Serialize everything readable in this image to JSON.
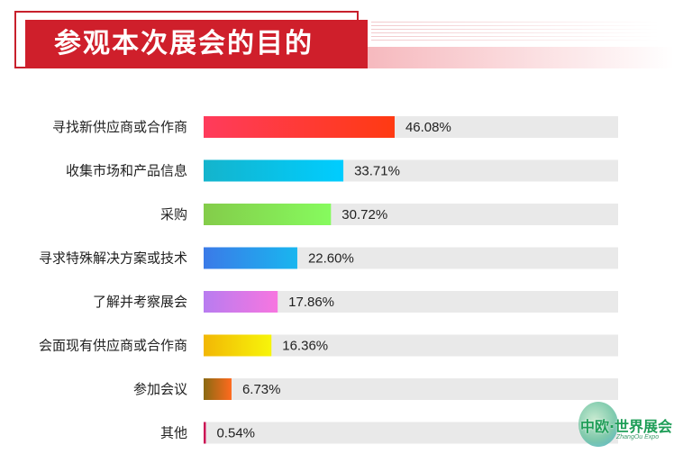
{
  "title": "参观本次展会的目的",
  "logo": {
    "text": "中欧·世界展会",
    "subtext": "ZhangOu Expo"
  },
  "chart_data": {
    "type": "bar",
    "orientation": "horizontal",
    "title": "参观本次展会的目的",
    "categories": [
      "寻找新供应商或合作商",
      "收集市场和产品信息",
      "采购",
      "寻求特殊解决方案或技术",
      "了解并考察展会",
      "会面现有供应商或合作商",
      "参加会议",
      "其他"
    ],
    "values": [
      46.08,
      33.71,
      30.72,
      22.6,
      17.86,
      16.36,
      6.73,
      0.54
    ],
    "value_labels": [
      "46.08%",
      "33.71%",
      "30.72%",
      "22.60%",
      "17.86%",
      "16.36%",
      "6.73%",
      "0.54%"
    ],
    "xlim": [
      0,
      100
    ],
    "unit": "%",
    "track_color": "#e9e9e9",
    "bar_gradients": [
      [
        "#ff3b5c",
        "#ff3a12"
      ],
      [
        "#14b4cc",
        "#00cdff"
      ],
      [
        "#84cc4a",
        "#86fb5e"
      ],
      [
        "#3b7ae8",
        "#19b6ef"
      ],
      [
        "#b87cf0",
        "#f776e0"
      ],
      [
        "#f2b705",
        "#f7f50a"
      ],
      [
        "#8a6a12",
        "#ff6a1e"
      ],
      [
        "#c2124d",
        "#d6155e"
      ]
    ],
    "grid": false,
    "legend": "none"
  }
}
